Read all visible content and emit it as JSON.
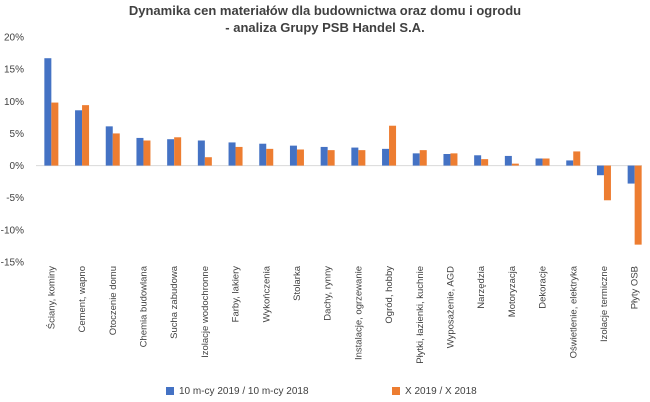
{
  "chart_data": {
    "type": "bar",
    "title": "Dynamika cen materiałów dla budownictwa oraz domu i ogrodu",
    "subtitle": "- analiza Grupy PSB Handel S.A.",
    "categories": [
      "Ściany, kominy",
      "Cement, wapno",
      "Otoczenie domu",
      "Chemia budowlana",
      "Sucha zabudowa",
      "Izolacje wodochronne",
      "Farby, lakiery",
      "Wykończenia",
      "Stolarka",
      "Dachy, rynny",
      "Instalacje, ogrzewanie",
      "Ogród, hobby",
      "Płytki, łazienki, kuchnie",
      "Wyposażenie, AGD",
      "Narzędzia",
      "Motoryzacja",
      "Dekoracje",
      "Oświetlenie, elektryka",
      "Izolacje termiczne",
      "Płyty OSB"
    ],
    "series": [
      {
        "name": "10 m-cy 2019 / 10 m-cy 2018",
        "color": "#4472C4",
        "values": [
          16.7,
          8.6,
          6.1,
          4.3,
          4.1,
          3.9,
          3.6,
          3.4,
          3.1,
          2.9,
          2.8,
          2.6,
          1.9,
          1.8,
          1.6,
          1.5,
          1.1,
          0.8,
          -1.5,
          -2.8
        ]
      },
      {
        "name": "X 2019 / X 2018",
        "color": "#ED7D31",
        "values": [
          9.8,
          9.4,
          5.0,
          3.9,
          4.4,
          1.3,
          2.9,
          2.6,
          2.5,
          2.4,
          2.4,
          6.2,
          2.4,
          1.9,
          1.0,
          0.3,
          1.1,
          2.2,
          -5.4,
          -12.3
        ]
      }
    ],
    "ylim": [
      -15,
      20
    ],
    "yticks": [
      "-15%",
      "-10%",
      "-5%",
      "0%",
      "5%",
      "10%",
      "15%",
      "20%"
    ],
    "xlabel": "",
    "ylabel": "",
    "grid": false,
    "legend_position": "bottom"
  }
}
